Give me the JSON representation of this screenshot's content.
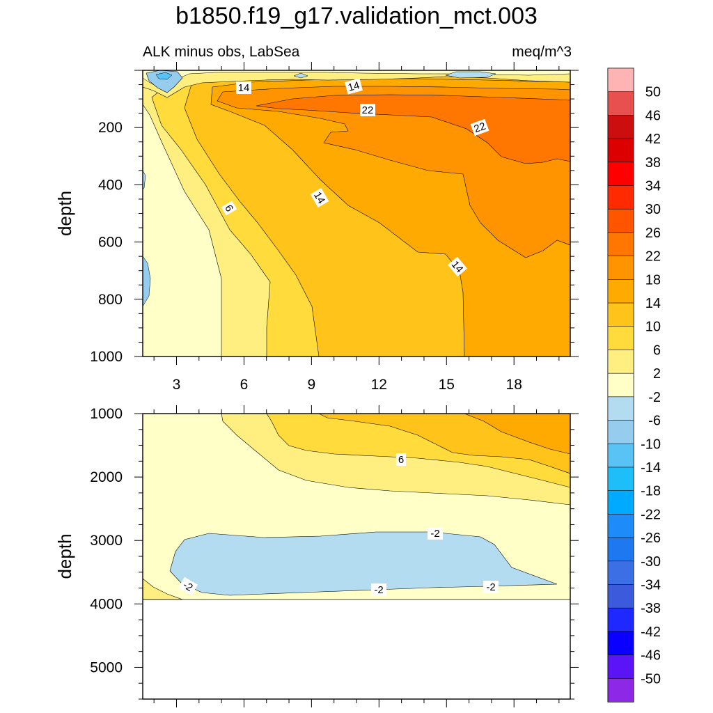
{
  "chart_data": {
    "type": "contour",
    "title": "b1850.f19_g17.validation_mct.003",
    "subtitle_left": "ALK minus obs, LabSea",
    "subtitle_right": "meq/m^3",
    "x_ticks": [
      "3",
      "6",
      "9",
      "12",
      "15",
      "18"
    ],
    "x_range": [
      1.5,
      20.5
    ],
    "panels": [
      {
        "name": "upper",
        "ylabel": "depth",
        "y_range": [
          0,
          1000
        ],
        "y_ticks": [
          "200",
          "400",
          "600",
          "800",
          "1000"
        ]
      },
      {
        "name": "lower",
        "ylabel": "depth",
        "y_range": [
          1000,
          5500
        ],
        "y_ticks": [
          "1000",
          "2000",
          "3000",
          "4000",
          "5000"
        ]
      }
    ],
    "contour_labels": [
      "14",
      "14",
      "22",
      "22",
      "14",
      "6",
      "14",
      "6",
      "-2",
      "-2",
      "-2",
      "-2"
    ],
    "colorbar": {
      "levels": [
        "50",
        "46",
        "42",
        "38",
        "34",
        "30",
        "26",
        "22",
        "18",
        "14",
        "10",
        "6",
        "2",
        "-2",
        "-6",
        "-10",
        "-14",
        "-18",
        "-22",
        "-26",
        "-30",
        "-34",
        "-38",
        "-42",
        "-46",
        "-50"
      ],
      "colors": [
        "#ffb4b4",
        "#e85050",
        "#cc0e0e",
        "#dd0000",
        "#ff0000",
        "#ff2a00",
        "#ff5500",
        "#ff7700",
        "#ff9400",
        "#ffaa00",
        "#ffc31a",
        "#ffdb3c",
        "#ffee80",
        "#ffffc8",
        "#b4dcf0",
        "#96cdee",
        "#5ac3f5",
        "#1ebef8",
        "#00aaff",
        "#1e8cf8",
        "#1e78f0",
        "#3c6ee6",
        "#3c5adc",
        "#1e28ff",
        "#0a00ff",
        "#5a14f5",
        "#8c28e6"
      ]
    }
  }
}
